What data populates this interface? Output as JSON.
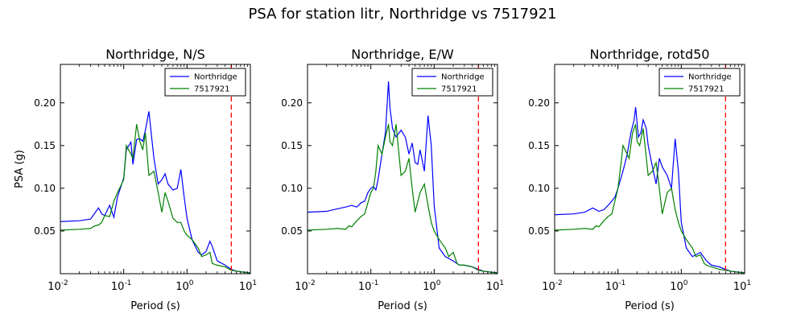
{
  "figure": {
    "suptitle": "PSA for station litr, Northridge vs 7517921"
  },
  "chart_data": [
    {
      "type": "line",
      "title": "Northridge, N/S",
      "xlabel": "Period (s)",
      "ylabel": "PSA (g)",
      "xscale": "log",
      "xlim": [
        0.01,
        10
      ],
      "ylim": [
        0,
        0.245
      ],
      "yticks": [
        "0.05",
        "0.10",
        "0.15",
        "0.20"
      ],
      "xticks": [
        "10^-2",
        "10^-1",
        "10^0",
        "10^1"
      ],
      "legend": "top-right",
      "reference_line": {
        "x": 5,
        "color": "#ff0000",
        "style": "dashed"
      },
      "series": [
        {
          "name": "Northridge",
          "color": "#0000ff",
          "x": [
            0.01,
            0.02,
            0.03,
            0.04,
            0.045,
            0.05,
            0.06,
            0.07,
            0.08,
            0.1,
            0.11,
            0.13,
            0.14,
            0.16,
            0.18,
            0.2,
            0.22,
            0.25,
            0.3,
            0.35,
            0.4,
            0.45,
            0.5,
            0.6,
            0.7,
            0.8,
            0.9,
            1.0,
            1.2,
            1.5,
            1.7,
            2.0,
            2.3,
            2.5,
            3.0,
            4.0,
            5.0,
            6.0,
            7.5,
            10.0
          ],
          "y": [
            0.061,
            0.062,
            0.064,
            0.077,
            0.07,
            0.068,
            0.08,
            0.066,
            0.09,
            0.112,
            0.145,
            0.154,
            0.128,
            0.157,
            0.158,
            0.155,
            0.168,
            0.19,
            0.135,
            0.105,
            0.11,
            0.117,
            0.105,
            0.098,
            0.1,
            0.122,
            0.09,
            0.065,
            0.04,
            0.025,
            0.022,
            0.026,
            0.038,
            0.032,
            0.015,
            0.01,
            0.005,
            0.003,
            0.002,
            0.001
          ]
        },
        {
          "name": "7517921",
          "color": "#008000",
          "x": [
            0.01,
            0.02,
            0.03,
            0.035,
            0.04,
            0.045,
            0.05,
            0.06,
            0.07,
            0.08,
            0.1,
            0.11,
            0.13,
            0.14,
            0.16,
            0.18,
            0.2,
            0.22,
            0.25,
            0.3,
            0.35,
            0.4,
            0.45,
            0.5,
            0.6,
            0.7,
            0.8,
            0.9,
            1.0,
            1.2,
            1.5,
            1.7,
            2.0,
            2.3,
            2.5,
            3.0,
            4.0,
            5.0,
            6.0,
            7.5,
            10.0
          ],
          "y": [
            0.051,
            0.052,
            0.053,
            0.056,
            0.057,
            0.06,
            0.068,
            0.067,
            0.085,
            0.095,
            0.11,
            0.15,
            0.14,
            0.135,
            0.175,
            0.155,
            0.145,
            0.165,
            0.115,
            0.12,
            0.095,
            0.072,
            0.095,
            0.085,
            0.065,
            0.06,
            0.06,
            0.05,
            0.045,
            0.04,
            0.03,
            0.02,
            0.022,
            0.025,
            0.012,
            0.01,
            0.008,
            0.004,
            0.003,
            0.002,
            0.001
          ]
        }
      ]
    },
    {
      "type": "line",
      "title": "Northridge, E/W",
      "xlabel": "Period (s)",
      "ylabel": "",
      "xscale": "log",
      "xlim": [
        0.01,
        10
      ],
      "ylim": [
        0,
        0.245
      ],
      "yticks": [
        "0.05",
        "0.10",
        "0.15",
        "0.20"
      ],
      "xticks": [
        "10^-2",
        "10^-1",
        "10^0",
        "10^1"
      ],
      "legend": "top-right",
      "reference_line": {
        "x": 5,
        "color": "#ff0000",
        "style": "dashed"
      },
      "series": [
        {
          "name": "Northridge",
          "color": "#0000ff",
          "x": [
            0.01,
            0.02,
            0.03,
            0.04,
            0.05,
            0.06,
            0.07,
            0.08,
            0.09,
            0.1,
            0.11,
            0.12,
            0.13,
            0.15,
            0.17,
            0.19,
            0.2,
            0.22,
            0.25,
            0.3,
            0.35,
            0.4,
            0.45,
            0.5,
            0.55,
            0.6,
            0.7,
            0.8,
            0.9,
            1.0,
            1.2,
            1.5,
            2.0,
            2.5,
            3.0,
            4.0,
            5.0,
            6.0,
            7.5,
            10.0
          ],
          "y": [
            0.072,
            0.073,
            0.076,
            0.078,
            0.08,
            0.078,
            0.083,
            0.085,
            0.095,
            0.1,
            0.102,
            0.098,
            0.11,
            0.14,
            0.165,
            0.225,
            0.195,
            0.17,
            0.16,
            0.168,
            0.16,
            0.14,
            0.153,
            0.13,
            0.128,
            0.145,
            0.12,
            0.185,
            0.15,
            0.08,
            0.03,
            0.02,
            0.015,
            0.01,
            0.01,
            0.008,
            0.005,
            0.003,
            0.002,
            0.001
          ]
        },
        {
          "name": "7517921",
          "color": "#008000",
          "x": [
            0.01,
            0.02,
            0.03,
            0.04,
            0.045,
            0.05,
            0.06,
            0.07,
            0.08,
            0.1,
            0.11,
            0.12,
            0.13,
            0.15,
            0.17,
            0.19,
            0.2,
            0.22,
            0.25,
            0.3,
            0.35,
            0.4,
            0.45,
            0.5,
            0.6,
            0.7,
            0.8,
            0.9,
            1.0,
            1.2,
            1.5,
            1.7,
            2.0,
            2.3,
            2.5,
            3.0,
            4.0,
            5.0,
            6.0,
            7.5,
            10.0
          ],
          "y": [
            0.051,
            0.052,
            0.053,
            0.052,
            0.056,
            0.055,
            0.062,
            0.067,
            0.07,
            0.095,
            0.1,
            0.12,
            0.15,
            0.14,
            0.16,
            0.175,
            0.155,
            0.15,
            0.175,
            0.115,
            0.12,
            0.135,
            0.1,
            0.072,
            0.095,
            0.105,
            0.08,
            0.06,
            0.05,
            0.04,
            0.03,
            0.02,
            0.025,
            0.012,
            0.01,
            0.01,
            0.008,
            0.004,
            0.003,
            0.002,
            0.001
          ]
        }
      ]
    },
    {
      "type": "line",
      "title": "Northridge, rotd50",
      "xlabel": "Period (s)",
      "ylabel": "",
      "xscale": "log",
      "xlim": [
        0.01,
        10
      ],
      "ylim": [
        0,
        0.245
      ],
      "yticks": [
        "0.05",
        "0.10",
        "0.15",
        "0.20"
      ],
      "xticks": [
        "10^-2",
        "10^-1",
        "10^0",
        "10^1"
      ],
      "legend": "top-right",
      "reference_line": {
        "x": 5,
        "color": "#ff0000",
        "style": "dashed"
      },
      "series": [
        {
          "name": "Northridge",
          "color": "#0000ff",
          "x": [
            0.01,
            0.02,
            0.03,
            0.04,
            0.05,
            0.06,
            0.07,
            0.08,
            0.09,
            0.1,
            0.12,
            0.14,
            0.16,
            0.18,
            0.19,
            0.21,
            0.23,
            0.25,
            0.28,
            0.3,
            0.35,
            0.4,
            0.45,
            0.5,
            0.6,
            0.7,
            0.8,
            0.9,
            1.0,
            1.2,
            1.5,
            2.0,
            2.5,
            3.0,
            4.0,
            5.0,
            6.0,
            7.5,
            10.0
          ],
          "y": [
            0.069,
            0.07,
            0.072,
            0.077,
            0.073,
            0.075,
            0.08,
            0.085,
            0.09,
            0.1,
            0.12,
            0.14,
            0.165,
            0.18,
            0.195,
            0.16,
            0.165,
            0.18,
            0.17,
            0.15,
            0.125,
            0.105,
            0.135,
            0.125,
            0.115,
            0.1,
            0.158,
            0.12,
            0.06,
            0.03,
            0.02,
            0.025,
            0.015,
            0.01,
            0.008,
            0.005,
            0.003,
            0.002,
            0.001
          ]
        },
        {
          "name": "7517921",
          "color": "#008000",
          "x": [
            0.01,
            0.02,
            0.03,
            0.04,
            0.045,
            0.05,
            0.06,
            0.07,
            0.08,
            0.1,
            0.11,
            0.12,
            0.13,
            0.15,
            0.17,
            0.19,
            0.2,
            0.22,
            0.25,
            0.3,
            0.35,
            0.4,
            0.45,
            0.5,
            0.6,
            0.7,
            0.8,
            0.9,
            1.0,
            1.2,
            1.5,
            1.7,
            2.0,
            2.3,
            2.5,
            3.0,
            4.0,
            5.0,
            6.0,
            7.5,
            10.0
          ],
          "y": [
            0.051,
            0.052,
            0.053,
            0.052,
            0.056,
            0.055,
            0.062,
            0.067,
            0.07,
            0.1,
            0.125,
            0.15,
            0.145,
            0.135,
            0.165,
            0.175,
            0.155,
            0.15,
            0.17,
            0.115,
            0.12,
            0.13,
            0.1,
            0.07,
            0.095,
            0.1,
            0.075,
            0.06,
            0.05,
            0.04,
            0.03,
            0.02,
            0.022,
            0.012,
            0.01,
            0.008,
            0.005,
            0.004,
            0.003,
            0.002,
            0.001
          ]
        }
      ]
    }
  ]
}
